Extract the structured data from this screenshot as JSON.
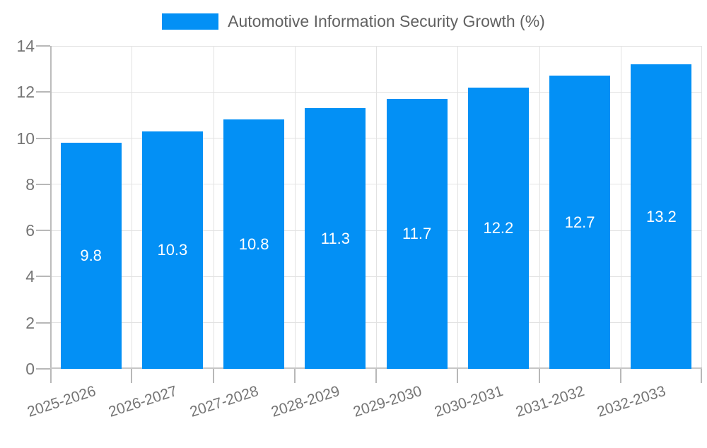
{
  "chart_data": {
    "type": "bar",
    "title": "Automotive Information Security Growth (%)",
    "legend": [
      "Automotive Information Security Growth (%)"
    ],
    "legend_position": "top",
    "categories": [
      "2025-2026",
      "2026-2027",
      "2027-2028",
      "2028-2029",
      "2029-2030",
      "2030-2031",
      "2031-2032",
      "2032-2033"
    ],
    "values": [
      9.8,
      10.3,
      10.8,
      11.3,
      11.7,
      12.2,
      12.7,
      13.2
    ],
    "bar_labels": [
      "9.8",
      "10.3",
      "10.8",
      "11.3",
      "11.7",
      "12.2",
      "12.7",
      "13.2"
    ],
    "xlabel": "",
    "ylabel": "",
    "ylim": [
      0,
      14
    ],
    "yticks": [
      0,
      2,
      4,
      6,
      8,
      10,
      12,
      14
    ],
    "grid": "on",
    "bar_color": "#0390f5",
    "bar_label_color": "#ffffff",
    "axis_text_color": "#757575",
    "title_color": "#616161"
  }
}
